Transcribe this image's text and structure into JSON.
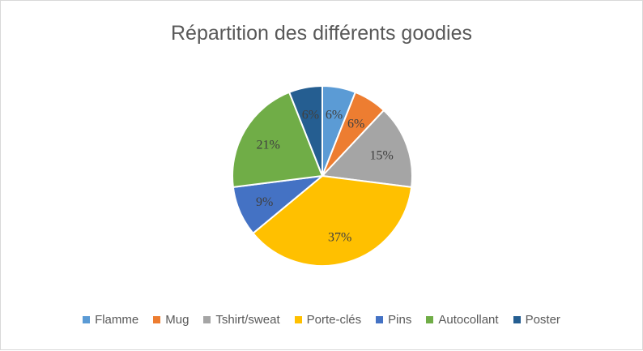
{
  "chart_data": {
    "type": "pie",
    "title": "Répartition des différents goodies",
    "categories": [
      "Flamme",
      "Mug",
      "Tshirt/sweat",
      "Porte-clés",
      "Pins",
      "Autocollant",
      "Poster"
    ],
    "values": [
      6,
      6,
      15,
      37,
      9,
      21,
      6
    ],
    "labels": [
      "6%",
      "6%",
      "15%",
      "37%",
      "9%",
      "21%",
      "6%"
    ],
    "colors": [
      "#5B9BD5",
      "#ED7D31",
      "#A5A5A5",
      "#FFC000",
      "#4472C4",
      "#70AD47",
      "#255E91"
    ],
    "legend_position": "bottom"
  }
}
